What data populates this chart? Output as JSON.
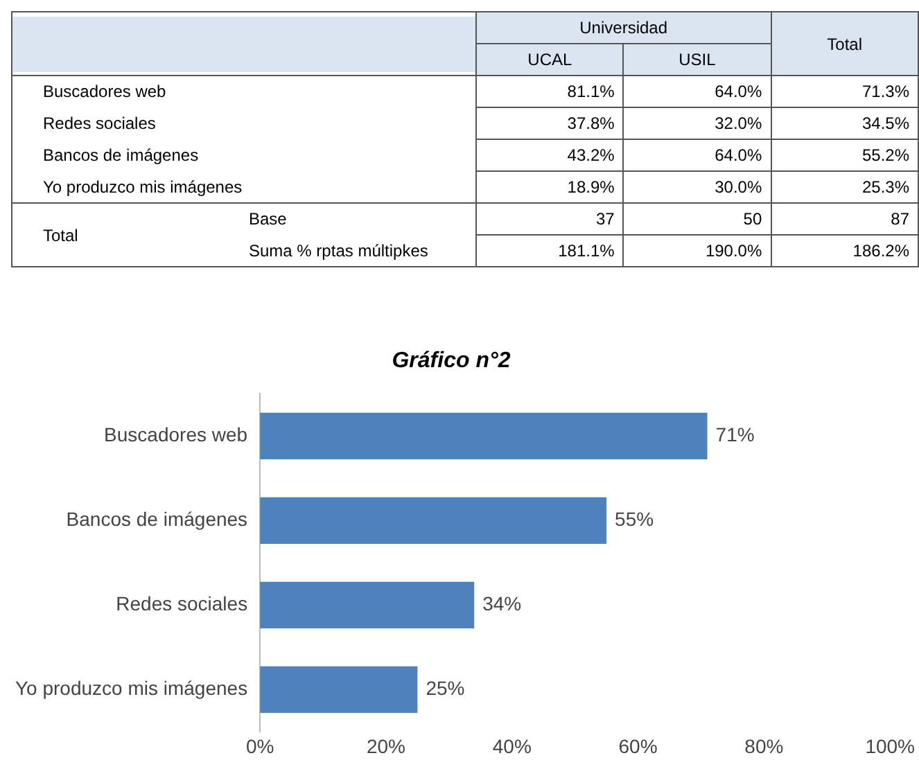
{
  "chart_data": [
    {
      "type": "other",
      "xlabel": "Universidad",
      "categories": [
        "UCAL",
        "USIL",
        "Total"
      ],
      "y_categories": [
        "Buscadores web",
        "Redes sociales",
        "Bancos de imágenes",
        "Yo produzco mis imágenes",
        "Total",
        null
      ],
      "y2_categories": [
        null,
        null,
        null,
        null,
        "Base",
        "Suma % rptas múltipkes"
      ],
      "cell_labels": [
        [
          "81.1%",
          "64.0%",
          "71.3%"
        ],
        [
          "37.8%",
          "32.0%",
          "34.5%"
        ],
        [
          "43.2%",
          "64.0%",
          "55.2%"
        ],
        [
          "18.9%",
          "30.0%",
          "25.3%"
        ],
        [
          "37",
          "50",
          "87"
        ],
        [
          "181.1%",
          "190.0%",
          "186.2%"
        ]
      ]
    },
    {
      "type": "bar",
      "orientation": "horizontal",
      "title": "Gráfico n°2",
      "categories": [
        "Buscadores web",
        "Bancos de imágenes",
        "Redes sociales",
        "Yo produzco mis imágenes"
      ],
      "values": [
        71,
        55,
        34,
        25
      ],
      "color": "#4f81bd",
      "value_labels": [
        "71%",
        "55%",
        "34%",
        "25%"
      ],
      "xlim": [
        0,
        100
      ],
      "xticks": [
        {
          "value": 0,
          "label": "0%"
        },
        {
          "value": 20,
          "label": "20%"
        },
        {
          "value": 40,
          "label": "40%"
        },
        {
          "value": 60,
          "label": "60%"
        },
        {
          "value": 80,
          "label": "80%"
        },
        {
          "value": 100,
          "label": "100%"
        }
      ],
      "grid": false,
      "legend": false
    }
  ]
}
